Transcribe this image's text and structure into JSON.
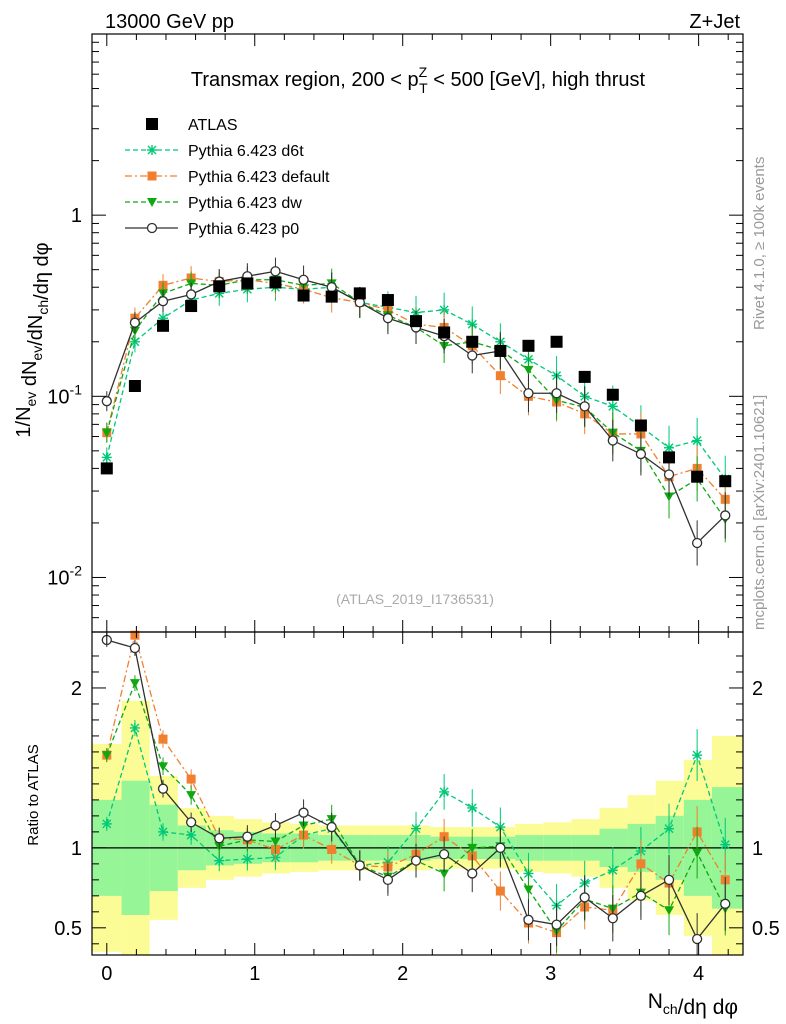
{
  "header": {
    "left": "13000 GeV pp",
    "right": "Z+Jet"
  },
  "side_labels": {
    "version": "Rivet 4.1.0, ≥ 100k events",
    "site": "mcplots.cern.ch [arXiv:2401.10621]"
  },
  "chart_data": {
    "type": "scatter",
    "title": "Transmax region, 200 < p_T^Z < 500 [GeV], high thrust",
    "analysis_id": "(ATLAS_2019_I1736531)",
    "xlabel": "N_ch/dη dφ",
    "ylabel": "1/N_ev dN_ev/dN_ch/dη dφ",
    "ratio_ylabel": "Ratio to ATLAS",
    "xlim": [
      -0.1,
      4.3
    ],
    "ylim": [
      0.005,
      10
    ],
    "yscale": "log",
    "ratio_ylim": [
      0.33,
      2.35
    ],
    "x_ticks": [
      "0",
      "1",
      "2",
      "3",
      "4"
    ],
    "y_ticks": [
      "10^-2",
      "10^-1",
      "1"
    ],
    "ratio_ticks": [
      "0.5",
      "1",
      "2"
    ],
    "legend_position": "top-left",
    "x": [
      0.0,
      0.19,
      0.38,
      0.57,
      0.76,
      0.95,
      1.14,
      1.33,
      1.52,
      1.71,
      1.9,
      2.09,
      2.28,
      2.47,
      2.66,
      2.85,
      3.04,
      3.23,
      3.42,
      3.61,
      3.8,
      3.99,
      4.18
    ],
    "atlas": [
      0.04,
      0.114,
      0.245,
      0.315,
      0.405,
      0.42,
      0.425,
      0.36,
      0.355,
      0.37,
      0.34,
      0.26,
      0.225,
      0.2,
      0.178,
      0.19,
      0.2,
      0.128,
      0.102,
      0.069,
      0.046,
      0.036,
      0.034
    ],
    "series": [
      {
        "name": "Pythia 6.423 d6t",
        "color": "#00c878",
        "style": "dashed",
        "marker": "star",
        "values": [
          0.046,
          0.2,
          0.27,
          0.34,
          0.37,
          0.39,
          0.4,
          0.39,
          0.4,
          0.33,
          0.31,
          0.29,
          0.3,
          0.25,
          0.2,
          0.16,
          0.13,
          0.1,
          0.088,
          0.068,
          0.052,
          0.057,
          0.035
        ],
        "ratio": [
          1.15,
          1.75,
          1.1,
          1.08,
          0.92,
          0.93,
          0.94,
          1.08,
          1.12,
          0.89,
          0.91,
          1.12,
          1.35,
          1.25,
          1.13,
          0.84,
          0.64,
          0.78,
          0.86,
          0.98,
          1.12,
          1.58,
          1.02
        ]
      },
      {
        "name": "Pythia 6.423 default",
        "color": "#f08030",
        "style": "dashdot",
        "marker": "square",
        "values": [
          0.063,
          0.27,
          0.41,
          0.45,
          0.43,
          0.44,
          0.42,
          0.39,
          0.35,
          0.33,
          0.3,
          0.25,
          0.24,
          0.19,
          0.13,
          0.1,
          0.093,
          0.08,
          0.062,
          0.062,
          0.036,
          0.04,
          0.027
        ],
        "ratio": [
          1.58,
          2.37,
          1.68,
          1.43,
          1.06,
          1.05,
          0.99,
          1.08,
          0.99,
          0.89,
          0.88,
          0.96,
          1.07,
          0.95,
          0.73,
          0.53,
          0.47,
          0.63,
          0.61,
          0.9,
          0.78,
          1.1,
          0.8
        ]
      },
      {
        "name": "Pythia 6.423 dw",
        "color": "#10a810",
        "style": "dashed",
        "marker": "triangle-down",
        "values": [
          0.063,
          0.23,
          0.37,
          0.42,
          0.41,
          0.44,
          0.44,
          0.41,
          0.42,
          0.33,
          0.28,
          0.24,
          0.19,
          0.2,
          0.18,
          0.14,
          0.095,
          0.087,
          0.063,
          0.05,
          0.028,
          0.035,
          0.021
        ],
        "ratio": [
          1.58,
          2.03,
          1.51,
          1.33,
          1.01,
          1.05,
          1.04,
          1.14,
          1.18,
          0.89,
          0.82,
          0.92,
          0.84,
          1.0,
          1.01,
          0.74,
          0.48,
          0.68,
          0.62,
          0.72,
          0.61,
          0.97,
          0.62
        ]
      },
      {
        "name": "Pythia 6.423 p0",
        "color": "#303030",
        "style": "solid",
        "marker": "open-circle",
        "values": [
          0.094,
          0.255,
          0.335,
          0.365,
          0.43,
          0.46,
          0.49,
          0.44,
          0.4,
          0.33,
          0.27,
          0.24,
          0.215,
          0.168,
          0.178,
          0.104,
          0.104,
          0.088,
          0.057,
          0.048,
          0.037,
          0.0155,
          0.022
        ],
        "ratio": [
          2.3,
          2.25,
          1.37,
          1.16,
          1.06,
          1.07,
          1.14,
          1.22,
          1.13,
          0.89,
          0.8,
          0.92,
          0.96,
          0.84,
          1.0,
          0.55,
          0.52,
          0.69,
          0.56,
          0.7,
          0.8,
          0.43,
          0.65
        ]
      }
    ],
    "band_edges": [
      -0.1,
      0.1,
      0.29,
      0.48,
      0.67,
      0.86,
      1.05,
      1.24,
      1.43,
      1.62,
      1.81,
      2.0,
      2.19,
      2.38,
      2.57,
      2.76,
      2.95,
      3.14,
      3.33,
      3.52,
      3.71,
      3.9,
      4.09,
      4.3
    ],
    "band_inner": [
      0.3,
      0.42,
      0.27,
      0.14,
      0.11,
      0.1,
      0.09,
      0.09,
      0.08,
      0.08,
      0.08,
      0.08,
      0.07,
      0.07,
      0.07,
      0.08,
      0.08,
      0.08,
      0.12,
      0.15,
      0.2,
      0.3,
      0.38
    ],
    "band_outer": [
      0.65,
      0.92,
      0.45,
      0.25,
      0.2,
      0.18,
      0.16,
      0.15,
      0.14,
      0.14,
      0.14,
      0.14,
      0.13,
      0.13,
      0.13,
      0.15,
      0.16,
      0.18,
      0.25,
      0.33,
      0.42,
      0.55,
      0.7
    ],
    "band_colors": {
      "inner": "#96f596",
      "outer": "#fcfc96"
    }
  }
}
